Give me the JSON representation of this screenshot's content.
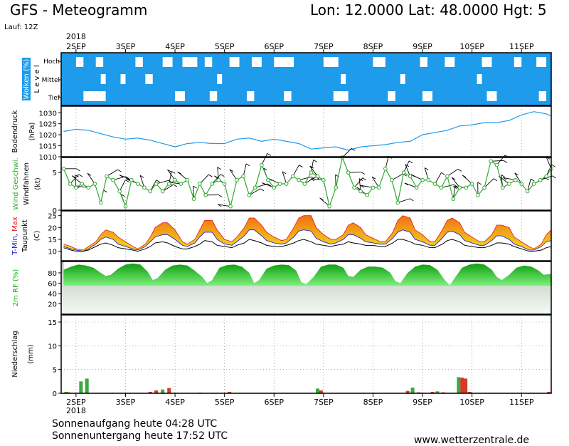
{
  "header": {
    "title": "GFS - Meteogramm",
    "location": "Lon: 12.0000 Lat: 48.0000 Hgt: 5",
    "run": "Lauf: 12Z"
  },
  "footer": {
    "sunrise": "Sonnenaufgang heute 04:28 UTC",
    "sunset": "Sonnenuntergang heute 17:52 UTC",
    "website": "www.wetterzentrale.de"
  },
  "colors": {
    "cloud_blue": "#1E9BEB",
    "pressure_line": "#1E9BEB",
    "wind_speed": "#2EAA2E",
    "wind_barb": "#000000",
    "tmin": "#1414C8",
    "tmax": "#E61414",
    "temp_fill_low": "#F2D21E",
    "temp_fill_high": "#F07814",
    "humidity": "#14C814",
    "precip_green": "#3CAA3C",
    "precip_red": "#D23C28"
  },
  "chart_data": {
    "type": "line",
    "x_axis": {
      "year": "2018",
      "dates": [
        "2SEP",
        "3SEP",
        "4SEP",
        "5SEP",
        "6SEP",
        "7SEP",
        "8SEP",
        "9SEP",
        "10SEP",
        "11SEP"
      ],
      "x_range_days": [
        1.7,
        11.6
      ]
    },
    "panels": [
      {
        "name": "clouds",
        "ylabel": "Wolken (%)",
        "ylabel2": "L e v e l",
        "levels": [
          "Hoch",
          "Mittel",
          "Tief"
        ],
        "clear_gaps": {
          "Hoch": [
            [
              2.0,
              2.15
            ],
            [
              2.4,
              2.55
            ],
            [
              3.2,
              3.35
            ],
            [
              3.75,
              3.95
            ],
            [
              4.15,
              4.45
            ],
            [
              4.6,
              4.75
            ],
            [
              5.1,
              5.3
            ],
            [
              5.55,
              5.75
            ],
            [
              6.0,
              6.4
            ],
            [
              7.0,
              7.3
            ],
            [
              8.0,
              8.25
            ],
            [
              8.95,
              9.1
            ],
            [
              9.45,
              9.65
            ],
            [
              10.2,
              10.4
            ],
            [
              10.85,
              11.0
            ],
            [
              11.3,
              11.5
            ]
          ],
          "Mittel": [
            [
              2.5,
              2.6
            ],
            [
              2.9,
              3.0
            ],
            [
              3.4,
              3.55
            ],
            [
              4.85,
              4.95
            ],
            [
              7.35,
              7.45
            ],
            [
              8.55,
              8.65
            ],
            [
              10.1,
              10.2
            ]
          ],
          "Tief": [
            [
              2.15,
              2.6
            ],
            [
              4.0,
              4.2
            ],
            [
              4.7,
              4.85
            ],
            [
              5.45,
              5.6
            ],
            [
              6.2,
              6.35
            ],
            [
              7.2,
              7.5
            ],
            [
              8.3,
              8.45
            ],
            [
              9.0,
              9.2
            ],
            [
              10.3,
              10.5
            ],
            [
              11.35,
              11.5
            ]
          ]
        }
      },
      {
        "name": "pressure",
        "ylabel": "Bodendruck",
        "ylabel2": "(hPa)",
        "ylim": [
          1010,
          1033
        ],
        "yticks": [
          "1010",
          "1015",
          "1020",
          "1025",
          "1030"
        ],
        "x": [
          1.75,
          2.0,
          2.25,
          2.5,
          2.75,
          3.0,
          3.25,
          3.5,
          3.75,
          4.0,
          4.25,
          4.5,
          4.75,
          5.0,
          5.25,
          5.5,
          5.75,
          6.0,
          6.25,
          6.5,
          6.75,
          7.0,
          7.25,
          7.5,
          7.75,
          8.0,
          8.25,
          8.5,
          8.75,
          9.0,
          9.25,
          9.5,
          9.75,
          10.0,
          10.25,
          10.5,
          10.75,
          11.0,
          11.25,
          11.5,
          11.6
        ],
        "values": [
          1021.5,
          1022.5,
          1022,
          1020.5,
          1019,
          1018,
          1018.5,
          1017.5,
          1016,
          1014.5,
          1016,
          1016.5,
          1016,
          1016,
          1018,
          1018.5,
          1017,
          1018,
          1017,
          1016,
          1013.5,
          1014,
          1014.5,
          1013,
          1014.5,
          1015,
          1015.5,
          1016.5,
          1017,
          1020,
          1021,
          1022,
          1024,
          1024.5,
          1025.5,
          1025.5,
          1026.5,
          1029,
          1030.5,
          1029.5,
          1028.5
        ]
      },
      {
        "name": "wind",
        "ylabel": "Wind Geschwi.",
        "ylabel2": "Windfahnen",
        "ylabel3": "(kt)",
        "ylim": [
          0,
          7
        ],
        "yticks": [
          "0",
          "5"
        ],
        "x": [
          1.75,
          1.88,
          2.0,
          2.12,
          2.25,
          2.38,
          2.5,
          2.62,
          2.75,
          2.88,
          3.0,
          3.12,
          3.25,
          3.38,
          3.5,
          3.62,
          3.75,
          3.88,
          4.0,
          4.12,
          4.25,
          4.38,
          4.5,
          4.62,
          4.75,
          4.88,
          5.0,
          5.12,
          5.25,
          5.38,
          5.5,
          5.62,
          5.75,
          5.88,
          6.0,
          6.12,
          6.25,
          6.38,
          6.5,
          6.62,
          6.75,
          6.88,
          7.0,
          7.12,
          7.25,
          7.38,
          7.5,
          7.62,
          7.75,
          7.88,
          8.0,
          8.12,
          8.25,
          8.38,
          8.5,
          8.62,
          8.75,
          8.88,
          9.0,
          9.12,
          9.25,
          9.38,
          9.5,
          9.62,
          9.75,
          9.88,
          10.0,
          10.12,
          10.25,
          10.38,
          10.5,
          10.62,
          10.75,
          10.88,
          11.0,
          11.12,
          11.25,
          11.38,
          11.5,
          11.6
        ],
        "values": [
          5.5,
          3.5,
          3,
          3.5,
          3,
          3.5,
          1,
          4.5,
          4,
          2.5,
          0.5,
          4,
          3.5,
          3,
          2.5,
          3.5,
          2.5,
          3.5,
          4,
          3.5,
          4,
          1.5,
          3.5,
          2,
          3.5,
          4,
          3.5,
          0.5,
          4,
          4.5,
          2,
          3,
          6,
          4,
          3,
          3.5,
          3.5,
          4.5,
          4,
          3.5,
          5,
          4.5,
          4,
          0.5,
          3,
          7,
          5,
          3,
          2.5,
          2,
          3,
          3,
          5.5,
          4,
          1,
          5,
          4.5,
          3,
          4,
          4,
          3.5,
          3,
          4.5,
          1.5,
          3,
          3,
          3.5,
          2,
          3,
          6.5,
          6,
          3,
          3.5,
          4,
          3.5,
          2.5,
          3.5,
          4,
          4.5,
          5.5
        ]
      },
      {
        "name": "temperature",
        "ylabel": "T-Min, Max",
        "ylabel2": "Taupunkt",
        "ylabel3": "(C)",
        "ylim": [
          6,
          27
        ],
        "yticks": [
          "10",
          "15",
          "20",
          "25"
        ],
        "x": [
          1.75,
          1.9,
          2.0,
          2.15,
          2.25,
          2.4,
          2.5,
          2.6,
          2.75,
          2.85,
          3.0,
          3.15,
          3.25,
          3.4,
          3.5,
          3.6,
          3.75,
          3.85,
          4.0,
          4.15,
          4.25,
          4.4,
          4.5,
          4.6,
          4.75,
          4.85,
          5.0,
          5.15,
          5.25,
          5.4,
          5.5,
          5.6,
          5.75,
          5.85,
          6.0,
          6.15,
          6.25,
          6.4,
          6.5,
          6.6,
          6.75,
          6.85,
          7.0,
          7.15,
          7.25,
          7.4,
          7.5,
          7.6,
          7.75,
          7.85,
          8.0,
          8.15,
          8.25,
          8.4,
          8.5,
          8.6,
          8.75,
          8.85,
          9.0,
          9.15,
          9.25,
          9.4,
          9.5,
          9.6,
          9.75,
          9.85,
          10.0,
          10.15,
          10.25,
          10.4,
          10.5,
          10.6,
          10.75,
          10.85,
          11.0,
          11.15,
          11.25,
          11.4,
          11.5,
          11.6
        ],
        "tmax": [
          13,
          12,
          11,
          10.5,
          12,
          14,
          17,
          19,
          18,
          16,
          14,
          12,
          11,
          13,
          16,
          20,
          22,
          22,
          19,
          14,
          13,
          15,
          19,
          23,
          23,
          19,
          15,
          14,
          16,
          20,
          24,
          24,
          21,
          18,
          16,
          14.5,
          15,
          20,
          24,
          25,
          25,
          20,
          17,
          15,
          15,
          17,
          21,
          22,
          20,
          17,
          15.5,
          14,
          14,
          18,
          23,
          25,
          24,
          19,
          17,
          14,
          14,
          19,
          23,
          24,
          22,
          18,
          16,
          14,
          14,
          17,
          21,
          21,
          20,
          16,
          14,
          12,
          11,
          13,
          17,
          19
        ],
        "tmin": [
          12,
          11,
          10.5,
          10,
          11,
          13,
          15,
          16,
          15,
          13,
          12,
          11,
          10.5,
          12,
          14,
          16,
          17,
          17,
          15,
          12.5,
          12,
          13.5,
          16,
          18,
          18,
          15,
          13,
          12.5,
          14,
          16.5,
          19,
          19,
          16.5,
          14.5,
          13.5,
          13,
          13.5,
          16,
          18.5,
          19,
          18.5,
          15.5,
          14,
          13,
          13.5,
          15,
          17,
          17,
          15.5,
          14,
          13.5,
          13,
          13,
          15.5,
          18,
          19,
          18,
          15,
          14,
          12.5,
          12.5,
          15.5,
          18,
          18.5,
          17,
          14.5,
          13.5,
          12.5,
          12.5,
          14.5,
          16.5,
          16.5,
          15,
          13,
          12,
          10.5,
          10.5,
          12,
          14,
          14.5
        ],
        "dewpoint": [
          11.5,
          10.5,
          10,
          10,
          10.5,
          12,
          13,
          13.5,
          12.5,
          11.5,
          11,
          10.5,
          10,
          11,
          12,
          13.5,
          14,
          13.5,
          12,
          11,
          11,
          12,
          13,
          14.5,
          14,
          12.5,
          12,
          11.5,
          12.5,
          13.5,
          15,
          14.5,
          13.5,
          12.5,
          12,
          12,
          12.5,
          13.5,
          14.5,
          15,
          14,
          13,
          12.5,
          12,
          12.5,
          13,
          14,
          13.5,
          13,
          12.5,
          12.5,
          12,
          12,
          13.5,
          15,
          15,
          14,
          13,
          12.5,
          11.5,
          11.5,
          13,
          14.5,
          15,
          14,
          12.5,
          12,
          11.5,
          11.5,
          12.5,
          13.5,
          13.5,
          13,
          12,
          11,
          10,
          10,
          10.5,
          11.5,
          12
        ]
      },
      {
        "name": "humidity",
        "ylabel": "2m RF (%)",
        "ylim": [
          0,
          102
        ],
        "yticks": [
          "20",
          "40",
          "60",
          "80"
        ],
        "x": [
          1.75,
          1.9,
          2.05,
          2.2,
          2.35,
          2.5,
          2.6,
          2.7,
          2.85,
          3.0,
          3.15,
          3.3,
          3.45,
          3.55,
          3.65,
          3.8,
          3.95,
          4.1,
          4.25,
          4.4,
          4.55,
          4.65,
          4.75,
          4.9,
          5.05,
          5.2,
          5.35,
          5.5,
          5.6,
          5.7,
          5.85,
          6.0,
          6.15,
          6.3,
          6.45,
          6.55,
          6.65,
          6.8,
          6.95,
          7.1,
          7.25,
          7.4,
          7.5,
          7.6,
          7.75,
          7.9,
          8.05,
          8.2,
          8.35,
          8.45,
          8.55,
          8.7,
          8.85,
          9.0,
          9.15,
          9.3,
          9.45,
          9.55,
          9.65,
          9.8,
          9.95,
          10.1,
          10.25,
          10.4,
          10.5,
          10.6,
          10.75,
          10.9,
          11.05,
          11.2,
          11.35,
          11.45,
          11.6
        ],
        "values": [
          86,
          92,
          96,
          94,
          90,
          80,
          74,
          76,
          88,
          96,
          98,
          96,
          82,
          66,
          70,
          86,
          94,
          96,
          94,
          84,
          72,
          60,
          66,
          90,
          95,
          96,
          92,
          80,
          60,
          66,
          88,
          94,
          96,
          95,
          84,
          62,
          58,
          72,
          92,
          96,
          96,
          90,
          74,
          72,
          86,
          92,
          92,
          90,
          80,
          64,
          60,
          80,
          92,
          96,
          95,
          86,
          66,
          56,
          70,
          90,
          96,
          98,
          96,
          86,
          72,
          66,
          76,
          90,
          94,
          92,
          84,
          76,
          78
        ]
      },
      {
        "name": "precipitation",
        "ylabel": "Niederschlag",
        "ylabel2": "(mm)",
        "ylim": [
          0,
          16.5
        ],
        "yticks": [
          "0",
          "5",
          "10",
          "15"
        ],
        "bars": [
          {
            "x": 1.8,
            "value": 0.3,
            "color": "green"
          },
          {
            "x": 1.85,
            "value": 0.2,
            "color": "red"
          },
          {
            "x": 2.1,
            "value": 2.5,
            "color": "green"
          },
          {
            "x": 2.22,
            "value": 3.1,
            "color": "green"
          },
          {
            "x": 2.75,
            "value": 0.1,
            "color": "green"
          },
          {
            "x": 3.5,
            "value": 0.3,
            "color": "red"
          },
          {
            "x": 3.62,
            "value": 0.6,
            "color": "red"
          },
          {
            "x": 3.75,
            "value": 0.8,
            "color": "green"
          },
          {
            "x": 3.88,
            "value": 1.1,
            "color": "red"
          },
          {
            "x": 4.5,
            "value": 0.15,
            "color": "red"
          },
          {
            "x": 5.1,
            "value": 0.3,
            "color": "red"
          },
          {
            "x": 6.2,
            "value": 0.1,
            "color": "red"
          },
          {
            "x": 6.88,
            "value": 1.0,
            "color": "green"
          },
          {
            "x": 6.95,
            "value": 0.6,
            "color": "red"
          },
          {
            "x": 7.8,
            "value": 0.1,
            "color": "red"
          },
          {
            "x": 8.7,
            "value": 0.5,
            "color": "red"
          },
          {
            "x": 8.8,
            "value": 1.2,
            "color": "green"
          },
          {
            "x": 8.92,
            "value": 0.2,
            "color": "red"
          },
          {
            "x": 9.2,
            "value": 0.3,
            "color": "red"
          },
          {
            "x": 9.3,
            "value": 0.4,
            "color": "green"
          },
          {
            "x": 9.42,
            "value": 0.2,
            "color": "red"
          },
          {
            "x": 9.73,
            "value": 3.4,
            "color": "green"
          },
          {
            "x": 9.8,
            "value": 3.3,
            "color": "red"
          },
          {
            "x": 9.87,
            "value": 3.1,
            "color": "red"
          },
          {
            "x": 9.95,
            "value": 0.3,
            "color": "red"
          },
          {
            "x": 10.4,
            "value": 0.1,
            "color": "red"
          },
          {
            "x": 11.2,
            "value": 0.1,
            "color": "red"
          },
          {
            "x": 11.55,
            "value": 0.3,
            "color": "red"
          }
        ]
      }
    ]
  }
}
